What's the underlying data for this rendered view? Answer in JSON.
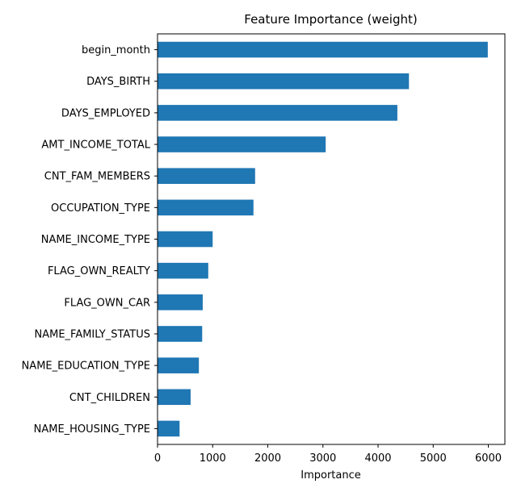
{
  "chart_data": {
    "type": "bar",
    "orientation": "horizontal",
    "title": "Feature Importance (weight)",
    "xlabel": "Importance",
    "ylabel": "",
    "xlim": [
      0,
      6300
    ],
    "xticks": [
      0,
      1000,
      2000,
      3000,
      4000,
      5000,
      6000
    ],
    "xtick_labels": [
      "0",
      "1000",
      "2000",
      "3000",
      "4000",
      "5000",
      "6000"
    ],
    "categories": [
      "begin_month",
      "DAYS_BIRTH",
      "DAYS_EMPLOYED",
      "AMT_INCOME_TOTAL",
      "CNT_FAM_MEMBERS",
      "OCCUPATION_TYPE",
      "NAME_INCOME_TYPE",
      "FLAG_OWN_REALTY",
      "FLAG_OWN_CAR",
      "NAME_FAMILY_STATUS",
      "NAME_EDUCATION_TYPE",
      "CNT_CHILDREN",
      "NAME_HOUSING_TYPE"
    ],
    "values": [
      5990,
      4560,
      4350,
      3050,
      1770,
      1740,
      1000,
      920,
      820,
      810,
      750,
      600,
      400
    ],
    "bar_color": "#1f77b4",
    "grid": false,
    "legend": "none"
  }
}
